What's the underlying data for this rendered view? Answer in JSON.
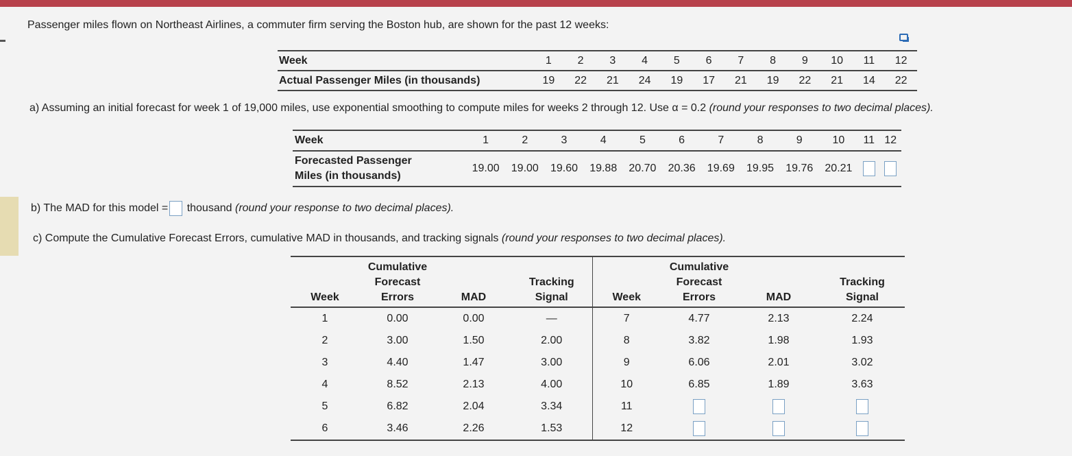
{
  "intro": "Passenger miles flown on Northeast Airlines, a commuter firm serving the Boston hub, are shown for the past 12 weeks:",
  "actual_table": {
    "week_label": "Week",
    "row_label": "Actual Passenger Miles (in thousands)",
    "weeks": [
      "1",
      "2",
      "3",
      "4",
      "5",
      "6",
      "7",
      "8",
      "9",
      "10",
      "11",
      "12"
    ],
    "values": [
      "19",
      "22",
      "21",
      "24",
      "19",
      "17",
      "21",
      "19",
      "22",
      "21",
      "14",
      "22"
    ]
  },
  "part_a": {
    "text": "a) Assuming an initial forecast for week 1 of 19,000 miles, use exponential smoothing to compute miles for weeks 2 through 12. Use α = 0.2",
    "note": "(round your responses to two decimal places)."
  },
  "forecast_table": {
    "week_label": "Week",
    "row_label_line1": "Forecasted Passenger",
    "row_label_line2": "Miles (in thousands)",
    "weeks": [
      "1",
      "2",
      "3",
      "4",
      "5",
      "6",
      "7",
      "8",
      "9",
      "10",
      "11",
      "12"
    ],
    "values": [
      "19.00",
      "19.00",
      "19.60",
      "19.88",
      "20.70",
      "20.36",
      "19.69",
      "19.95",
      "19.76",
      "20.21",
      "",
      ""
    ]
  },
  "part_b": {
    "prefix": "b) The MAD for this model =",
    "suffix": "thousand",
    "note": "(round your response to two decimal places).",
    "answer": ""
  },
  "part_c": {
    "text": "c) Compute the Cumulative Forecast Errors, cumulative MAD in thousands, and tracking signals",
    "note": "(round your responses to two decimal places)."
  },
  "tracking_table": {
    "headers": {
      "week": "Week",
      "cfe_1": "Cumulative",
      "cfe_2": "Forecast",
      "cfe_3": "Errors",
      "mad": "MAD",
      "ts_1": "Tracking",
      "ts_2": "Signal"
    },
    "rows": [
      {
        "week": "1",
        "cfe": "0.00",
        "mad": "0.00",
        "ts": "—",
        "week2": "7",
        "cfe2": "4.77",
        "mad2": "2.13",
        "ts2": "2.24"
      },
      {
        "week": "2",
        "cfe": "3.00",
        "mad": "1.50",
        "ts": "2.00",
        "week2": "8",
        "cfe2": "3.82",
        "mad2": "1.98",
        "ts2": "1.93"
      },
      {
        "week": "3",
        "cfe": "4.40",
        "mad": "1.47",
        "ts": "3.00",
        "week2": "9",
        "cfe2": "6.06",
        "mad2": "2.01",
        "ts2": "3.02"
      },
      {
        "week": "4",
        "cfe": "8.52",
        "mad": "2.13",
        "ts": "4.00",
        "week2": "10",
        "cfe2": "6.85",
        "mad2": "1.89",
        "ts2": "3.63"
      },
      {
        "week": "5",
        "cfe": "6.82",
        "mad": "2.04",
        "ts": "3.34",
        "week2": "11",
        "cfe2": "",
        "mad2": "",
        "ts2": ""
      },
      {
        "week": "6",
        "cfe": "3.46",
        "mad": "2.26",
        "ts": "1.53",
        "week2": "12",
        "cfe2": "",
        "mad2": "",
        "ts2": ""
      }
    ]
  },
  "colors": {
    "top_bar": "#b7414b",
    "input_border": "#7aa0c4",
    "icon": "#2c6bb5"
  }
}
